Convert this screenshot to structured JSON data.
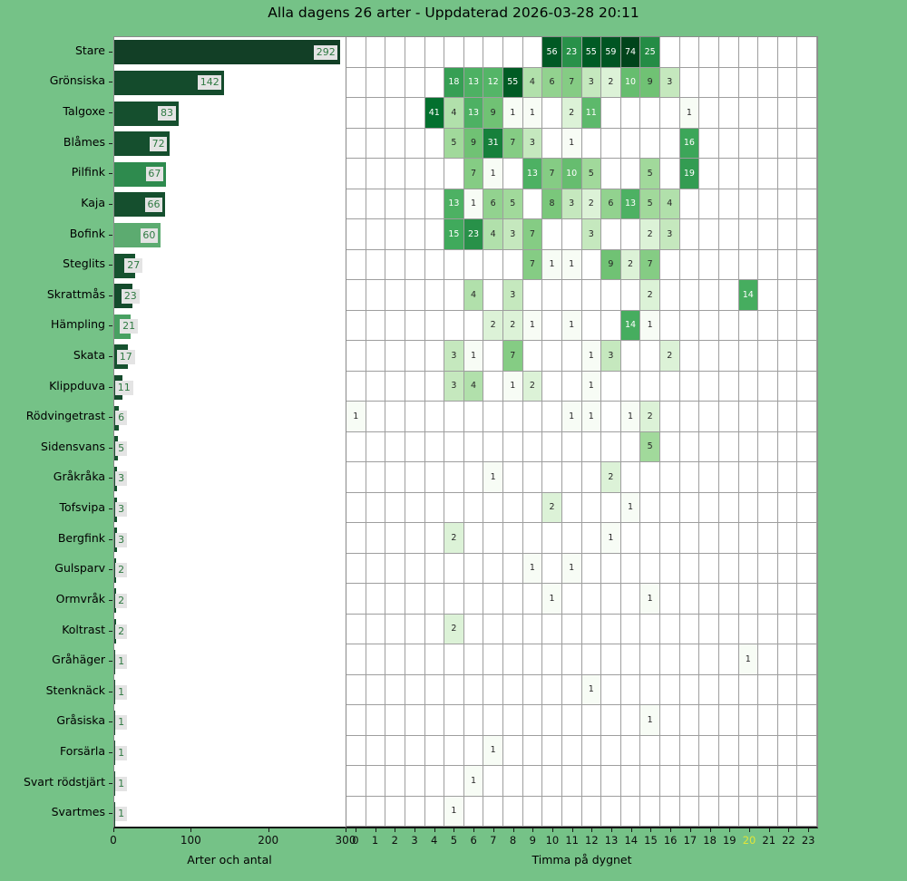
{
  "title": "Alla dagens 26 arter - Uppdaterad 2026-03-28 20:11",
  "colors": {
    "figure_background": "#75c287",
    "plot_background": "#ffffff",
    "grid": "#9e9e9e",
    "value_badge_background": "#e4e4e4",
    "value_badge_text": "#2f7a42",
    "axis_text": "#000000",
    "highlight_hour_color": "#e0e43a",
    "heatmap_dark_text": "#262626",
    "heatmap_light_text": "#ffffff"
  },
  "chart_data": {
    "type": "bar+heatmap",
    "bar": {
      "orientation": "horizontal",
      "xlabel": "Arter och antal",
      "xticks": [
        0,
        100,
        200,
        300
      ],
      "xlim": [
        0,
        300
      ],
      "value_labels": true
    },
    "heatmap": {
      "xlabel": "Timma på dygnet",
      "hours": [
        0,
        1,
        2,
        3,
        4,
        5,
        6,
        7,
        8,
        9,
        10,
        11,
        12,
        13,
        14,
        15,
        16,
        17,
        18,
        19,
        20,
        21,
        22,
        23
      ],
      "highlight_hour": 20,
      "colormap": "Greens",
      "norm": "log",
      "vmin": 1,
      "vmax": 74
    },
    "species": [
      {
        "name": "Stare",
        "total": 292,
        "bar_color": "#123f26",
        "by_hour": [
          [
            10,
            56
          ],
          [
            11,
            23
          ],
          [
            12,
            55
          ],
          [
            13,
            59
          ],
          [
            14,
            74
          ],
          [
            15,
            25
          ]
        ]
      },
      {
        "name": "Grönsiska",
        "total": 142,
        "bar_color": "#144b2c",
        "by_hour": [
          [
            5,
            18
          ],
          [
            6,
            13
          ],
          [
            7,
            12
          ],
          [
            8,
            55
          ],
          [
            9,
            4
          ],
          [
            10,
            6
          ],
          [
            11,
            7
          ],
          [
            12,
            3
          ],
          [
            13,
            2
          ],
          [
            14,
            10
          ],
          [
            15,
            9
          ],
          [
            16,
            3
          ]
        ]
      },
      {
        "name": "Talgoxe",
        "total": 83,
        "bar_color": "#154f2e",
        "by_hour": [
          [
            4,
            41
          ],
          [
            5,
            4
          ],
          [
            6,
            13
          ],
          [
            7,
            9
          ],
          [
            8,
            1
          ],
          [
            9,
            1
          ],
          [
            11,
            2
          ],
          [
            12,
            11
          ],
          [
            17,
            1
          ]
        ]
      },
      {
        "name": "Blåmes",
        "total": 72,
        "bar_color": "#154f2e",
        "by_hour": [
          [
            5,
            5
          ],
          [
            6,
            9
          ],
          [
            7,
            31
          ],
          [
            8,
            7
          ],
          [
            9,
            3
          ],
          [
            11,
            1
          ],
          [
            17,
            16
          ]
        ]
      },
      {
        "name": "Pilfink",
        "total": 67,
        "bar_color": "#2e8b4e",
        "by_hour": [
          [
            6,
            7
          ],
          [
            7,
            1
          ],
          [
            9,
            13
          ],
          [
            10,
            7
          ],
          [
            11,
            10
          ],
          [
            12,
            5
          ],
          [
            15,
            5
          ],
          [
            17,
            19
          ]
        ]
      },
      {
        "name": "Kaja",
        "total": 66,
        "bar_color": "#154f2e",
        "by_hour": [
          [
            5,
            13
          ],
          [
            6,
            1
          ],
          [
            7,
            6
          ],
          [
            8,
            5
          ],
          [
            10,
            8
          ],
          [
            11,
            3
          ],
          [
            12,
            2
          ],
          [
            13,
            6
          ],
          [
            14,
            13
          ],
          [
            15,
            5
          ],
          [
            16,
            4
          ]
        ]
      },
      {
        "name": "Bofink",
        "total": 60,
        "bar_color": "#5cab70",
        "by_hour": [
          [
            5,
            15
          ],
          [
            6,
            23
          ],
          [
            7,
            4
          ],
          [
            8,
            3
          ],
          [
            9,
            7
          ],
          [
            12,
            3
          ],
          [
            15,
            2
          ],
          [
            16,
            3
          ]
        ]
      },
      {
        "name": "Steglits",
        "total": 27,
        "bar_color": "#16522f",
        "by_hour": [
          [
            9,
            7
          ],
          [
            10,
            1
          ],
          [
            11,
            1
          ],
          [
            13,
            9
          ],
          [
            14,
            2
          ],
          [
            15,
            7
          ]
        ]
      },
      {
        "name": "Skrattmås",
        "total": 23,
        "bar_color": "#144b2c",
        "by_hour": [
          [
            6,
            4
          ],
          [
            8,
            3
          ],
          [
            15,
            2
          ],
          [
            20,
            14
          ]
        ]
      },
      {
        "name": "Hämpling",
        "total": 21,
        "bar_color": "#48a061",
        "by_hour": [
          [
            7,
            2
          ],
          [
            8,
            2
          ],
          [
            9,
            1
          ],
          [
            11,
            1
          ],
          [
            14,
            14
          ],
          [
            15,
            1
          ]
        ]
      },
      {
        "name": "Skata",
        "total": 17,
        "bar_color": "#16522f",
        "by_hour": [
          [
            5,
            3
          ],
          [
            6,
            1
          ],
          [
            8,
            7
          ],
          [
            12,
            1
          ],
          [
            13,
            3
          ],
          [
            16,
            2
          ]
        ]
      },
      {
        "name": "Klippduva",
        "total": 11,
        "bar_color": "#144b2c",
        "by_hour": [
          [
            5,
            3
          ],
          [
            6,
            4
          ],
          [
            8,
            1
          ],
          [
            9,
            2
          ],
          [
            12,
            1
          ]
        ]
      },
      {
        "name": "Rödvingetrast",
        "total": 6,
        "bar_color": "#16522f",
        "by_hour": [
          [
            0,
            1
          ],
          [
            11,
            1
          ],
          [
            12,
            1
          ],
          [
            14,
            1
          ],
          [
            15,
            2
          ]
        ]
      },
      {
        "name": "Sidensvans",
        "total": 5,
        "bar_color": "#16522f",
        "by_hour": [
          [
            15,
            5
          ]
        ]
      },
      {
        "name": "Gråkråka",
        "total": 3,
        "bar_color": "#16522f",
        "by_hour": [
          [
            7,
            1
          ],
          [
            13,
            2
          ]
        ]
      },
      {
        "name": "Tofsvipa",
        "total": 3,
        "bar_color": "#16522f",
        "by_hour": [
          [
            10,
            2
          ],
          [
            14,
            1
          ]
        ]
      },
      {
        "name": "Bergfink",
        "total": 3,
        "bar_color": "#16522f",
        "by_hour": [
          [
            5,
            2
          ],
          [
            13,
            1
          ]
        ]
      },
      {
        "name": "Gulsparv",
        "total": 2,
        "bar_color": "#16522f",
        "by_hour": [
          [
            9,
            1
          ],
          [
            11,
            1
          ]
        ]
      },
      {
        "name": "Ormvråk",
        "total": 2,
        "bar_color": "#16522f",
        "by_hour": [
          [
            10,
            1
          ],
          [
            15,
            1
          ]
        ]
      },
      {
        "name": "Koltrast",
        "total": 2,
        "bar_color": "#16522f",
        "by_hour": [
          [
            5,
            2
          ]
        ]
      },
      {
        "name": "Gråhäger",
        "total": 1,
        "bar_color": "#16522f",
        "by_hour": [
          [
            20,
            1
          ]
        ]
      },
      {
        "name": "Stenknäck",
        "total": 1,
        "bar_color": "#16522f",
        "by_hour": [
          [
            12,
            1
          ]
        ]
      },
      {
        "name": "Gråsiska",
        "total": 1,
        "bar_color": "#16522f",
        "by_hour": [
          [
            15,
            1
          ]
        ]
      },
      {
        "name": "Forsärla",
        "total": 1,
        "bar_color": "#16522f",
        "by_hour": [
          [
            7,
            1
          ]
        ]
      },
      {
        "name": "Svart rödstjärt",
        "total": 1,
        "bar_color": "#16522f",
        "by_hour": [
          [
            6,
            1
          ]
        ]
      },
      {
        "name": "Svartmes",
        "total": 1,
        "bar_color": "#16522f",
        "by_hour": [
          [
            5,
            1
          ]
        ]
      }
    ]
  }
}
